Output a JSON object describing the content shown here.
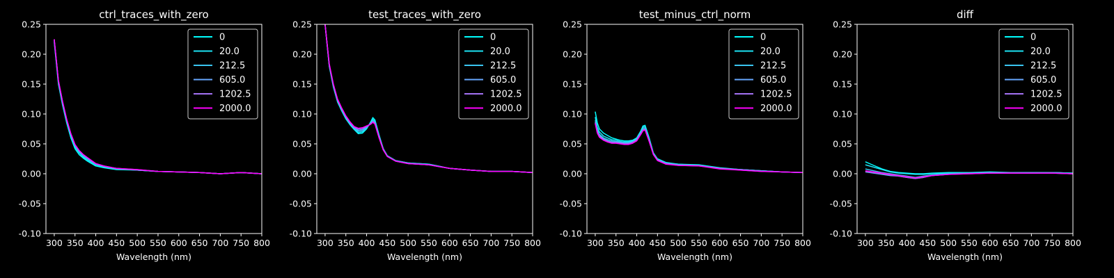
{
  "figure": {
    "background": "#000000",
    "foreground": "#ffffff"
  },
  "chart_data": [
    {
      "type": "line",
      "title": "ctrl_traces_with_zero",
      "xlabel": "Wavelength (nm)",
      "ylabel": "",
      "xlim": [
        280,
        800
      ],
      "ylim": [
        -0.1,
        0.25
      ],
      "xticks": [
        300,
        350,
        400,
        450,
        500,
        550,
        600,
        650,
        700,
        750,
        800
      ],
      "yticks": [
        -0.1,
        -0.05,
        0.0,
        0.05,
        0.1,
        0.15,
        0.2,
        0.25
      ],
      "legend_position": "top-right",
      "x": [
        300,
        310,
        320,
        330,
        340,
        350,
        360,
        370,
        380,
        390,
        400,
        420,
        450,
        500,
        550,
        600,
        650,
        700,
        750,
        800
      ],
      "series": [
        {
          "name": "0",
          "color": "#00ffff",
          "values": [
            0.22,
            0.15,
            0.115,
            0.085,
            0.06,
            0.042,
            0.032,
            0.026,
            0.021,
            0.017,
            0.013,
            0.01,
            0.007,
            0.006,
            0.004,
            0.003,
            0.002,
            0.0,
            0.002,
            0.0
          ]
        },
        {
          "name": "20.0",
          "color": "#1ce3f5",
          "values": [
            0.222,
            0.152,
            0.117,
            0.087,
            0.063,
            0.045,
            0.035,
            0.028,
            0.023,
            0.019,
            0.015,
            0.011,
            0.008,
            0.006,
            0.004,
            0.003,
            0.002,
            0.0,
            0.002,
            0.0
          ]
        },
        {
          "name": "212.5",
          "color": "#3ac5f0",
          "values": [
            0.223,
            0.154,
            0.119,
            0.089,
            0.065,
            0.047,
            0.037,
            0.03,
            0.025,
            0.02,
            0.016,
            0.012,
            0.008,
            0.006,
            0.004,
            0.003,
            0.002,
            0.0,
            0.002,
            0.0
          ]
        },
        {
          "name": "605.0",
          "color": "#66a8ff",
          "values": [
            0.224,
            0.155,
            0.12,
            0.09,
            0.066,
            0.048,
            0.038,
            0.031,
            0.026,
            0.021,
            0.017,
            0.012,
            0.009,
            0.006,
            0.004,
            0.003,
            0.002,
            0.0,
            0.002,
            0.0
          ]
        },
        {
          "name": "1202.5",
          "color": "#a472f5",
          "values": [
            0.225,
            0.156,
            0.121,
            0.091,
            0.067,
            0.049,
            0.039,
            0.032,
            0.027,
            0.022,
            0.017,
            0.013,
            0.009,
            0.007,
            0.004,
            0.003,
            0.002,
            0.0,
            0.002,
            0.0
          ]
        },
        {
          "name": "2000.0",
          "color": "#ff00ff",
          "values": [
            0.225,
            0.156,
            0.121,
            0.091,
            0.067,
            0.049,
            0.039,
            0.032,
            0.027,
            0.022,
            0.017,
            0.013,
            0.009,
            0.007,
            0.004,
            0.003,
            0.002,
            0.0,
            0.002,
            0.0
          ]
        }
      ]
    },
    {
      "type": "line",
      "title": "test_traces_with_zero",
      "xlabel": "Wavelength (nm)",
      "ylabel": "",
      "xlim": [
        280,
        800
      ],
      "ylim": [
        -0.1,
        0.25
      ],
      "xticks": [
        300,
        350,
        400,
        450,
        500,
        550,
        600,
        650,
        700,
        750,
        800
      ],
      "yticks": [
        -0.1,
        -0.05,
        0.0,
        0.05,
        0.1,
        0.15,
        0.2,
        0.25
      ],
      "legend_position": "top-right",
      "x": [
        300,
        310,
        320,
        330,
        340,
        350,
        360,
        370,
        380,
        390,
        400,
        410,
        415,
        420,
        430,
        440,
        450,
        470,
        500,
        550,
        600,
        650,
        700,
        750,
        800
      ],
      "series": [
        {
          "name": "0",
          "color": "#00ffff",
          "values": [
            0.25,
            0.18,
            0.145,
            0.12,
            0.105,
            0.092,
            0.082,
            0.074,
            0.067,
            0.068,
            0.075,
            0.087,
            0.094,
            0.09,
            0.065,
            0.042,
            0.03,
            0.022,
            0.018,
            0.016,
            0.009,
            0.006,
            0.004,
            0.004,
            0.002
          ]
        },
        {
          "name": "20.0",
          "color": "#1ce3f5",
          "values": [
            0.25,
            0.18,
            0.146,
            0.121,
            0.106,
            0.093,
            0.083,
            0.075,
            0.069,
            0.07,
            0.076,
            0.086,
            0.091,
            0.088,
            0.064,
            0.042,
            0.03,
            0.022,
            0.018,
            0.016,
            0.009,
            0.006,
            0.004,
            0.004,
            0.002
          ]
        },
        {
          "name": "212.5",
          "color": "#3ac5f0",
          "values": [
            0.25,
            0.181,
            0.147,
            0.122,
            0.107,
            0.094,
            0.084,
            0.076,
            0.071,
            0.072,
            0.077,
            0.085,
            0.089,
            0.086,
            0.063,
            0.041,
            0.03,
            0.022,
            0.018,
            0.015,
            0.009,
            0.006,
            0.004,
            0.004,
            0.002
          ]
        },
        {
          "name": "605.0",
          "color": "#66a8ff",
          "values": [
            0.25,
            0.182,
            0.148,
            0.123,
            0.108,
            0.095,
            0.085,
            0.077,
            0.073,
            0.074,
            0.078,
            0.084,
            0.088,
            0.085,
            0.062,
            0.041,
            0.029,
            0.021,
            0.017,
            0.015,
            0.009,
            0.006,
            0.004,
            0.004,
            0.002
          ]
        },
        {
          "name": "1202.5",
          "color": "#a472f5",
          "values": [
            0.25,
            0.183,
            0.149,
            0.124,
            0.109,
            0.096,
            0.086,
            0.078,
            0.075,
            0.076,
            0.079,
            0.083,
            0.087,
            0.084,
            0.061,
            0.04,
            0.029,
            0.021,
            0.017,
            0.015,
            0.009,
            0.006,
            0.004,
            0.004,
            0.002
          ]
        },
        {
          "name": "2000.0",
          "color": "#ff00ff",
          "values": [
            0.25,
            0.184,
            0.15,
            0.125,
            0.11,
            0.097,
            0.087,
            0.079,
            0.076,
            0.077,
            0.08,
            0.083,
            0.086,
            0.083,
            0.06,
            0.04,
            0.029,
            0.021,
            0.017,
            0.015,
            0.009,
            0.006,
            0.004,
            0.004,
            0.002
          ]
        }
      ]
    },
    {
      "type": "line",
      "title": "test_minus_ctrl_norm",
      "xlabel": "Wavelength (nm)",
      "ylabel": "",
      "xlim": [
        280,
        800
      ],
      "ylim": [
        -0.1,
        0.25
      ],
      "xticks": [
        300,
        350,
        400,
        450,
        500,
        550,
        600,
        650,
        700,
        750,
        800
      ],
      "yticks": [
        -0.1,
        -0.05,
        0.0,
        0.05,
        0.1,
        0.15,
        0.2,
        0.25
      ],
      "legend_position": "top-right",
      "x": [
        300,
        305,
        310,
        320,
        330,
        340,
        350,
        360,
        370,
        380,
        390,
        400,
        410,
        415,
        420,
        430,
        440,
        450,
        470,
        500,
        550,
        600,
        650,
        700,
        750,
        800
      ],
      "series": [
        {
          "name": "0",
          "color": "#00ffff",
          "values": [
            0.104,
            0.085,
            0.075,
            0.068,
            0.064,
            0.06,
            0.058,
            0.056,
            0.055,
            0.055,
            0.056,
            0.06,
            0.072,
            0.08,
            0.081,
            0.06,
            0.035,
            0.025,
            0.019,
            0.016,
            0.015,
            0.01,
            0.007,
            0.005,
            0.003,
            0.002
          ]
        },
        {
          "name": "20.0",
          "color": "#1ce3f5",
          "values": [
            0.095,
            0.078,
            0.07,
            0.063,
            0.06,
            0.057,
            0.056,
            0.054,
            0.053,
            0.053,
            0.055,
            0.059,
            0.071,
            0.078,
            0.079,
            0.058,
            0.034,
            0.024,
            0.018,
            0.016,
            0.014,
            0.009,
            0.007,
            0.005,
            0.003,
            0.002
          ]
        },
        {
          "name": "212.5",
          "color": "#3ac5f0",
          "values": [
            0.09,
            0.074,
            0.066,
            0.06,
            0.057,
            0.055,
            0.054,
            0.053,
            0.052,
            0.052,
            0.054,
            0.058,
            0.069,
            0.076,
            0.077,
            0.057,
            0.034,
            0.024,
            0.018,
            0.015,
            0.014,
            0.009,
            0.007,
            0.005,
            0.003,
            0.002
          ]
        },
        {
          "name": "605.0",
          "color": "#66a8ff",
          "values": [
            0.087,
            0.071,
            0.064,
            0.058,
            0.055,
            0.053,
            0.053,
            0.052,
            0.051,
            0.051,
            0.053,
            0.057,
            0.068,
            0.074,
            0.075,
            0.056,
            0.033,
            0.023,
            0.017,
            0.015,
            0.014,
            0.009,
            0.007,
            0.005,
            0.003,
            0.002
          ]
        },
        {
          "name": "1202.5",
          "color": "#a472f5",
          "values": [
            0.085,
            0.069,
            0.062,
            0.057,
            0.054,
            0.052,
            0.052,
            0.051,
            0.05,
            0.05,
            0.052,
            0.056,
            0.067,
            0.073,
            0.074,
            0.055,
            0.033,
            0.023,
            0.017,
            0.014,
            0.013,
            0.009,
            0.006,
            0.004,
            0.003,
            0.002
          ]
        },
        {
          "name": "2000.0",
          "color": "#ff00ff",
          "values": [
            0.084,
            0.068,
            0.061,
            0.056,
            0.053,
            0.051,
            0.051,
            0.05,
            0.049,
            0.049,
            0.051,
            0.055,
            0.066,
            0.072,
            0.073,
            0.054,
            0.032,
            0.022,
            0.016,
            0.014,
            0.013,
            0.008,
            0.006,
            0.004,
            0.003,
            0.002
          ]
        }
      ]
    },
    {
      "type": "line",
      "title": "diff",
      "xlabel": "Wavelength (nm)",
      "ylabel": "",
      "xlim": [
        280,
        800
      ],
      "ylim": [
        -0.1,
        0.25
      ],
      "xticks": [
        300,
        350,
        400,
        450,
        500,
        550,
        600,
        650,
        700,
        750,
        800
      ],
      "yticks": [
        -0.1,
        -0.05,
        0.0,
        0.05,
        0.1,
        0.15,
        0.2,
        0.25
      ],
      "legend_position": "top-right",
      "x": [
        300,
        320,
        340,
        360,
        380,
        400,
        420,
        440,
        460,
        500,
        550,
        600,
        650,
        700,
        750,
        800
      ],
      "series": [
        {
          "name": "0",
          "color": "#00ffff",
          "values": [
            0.02,
            0.014,
            0.008,
            0.004,
            0.002,
            0.001,
            0.0,
            0.0,
            0.001,
            0.002,
            0.002,
            0.003,
            0.002,
            0.002,
            0.002,
            0.001
          ]
        },
        {
          "name": "20.0",
          "color": "#1ce3f5",
          "values": [
            0.015,
            0.011,
            0.007,
            0.003,
            0.001,
            0.0,
            -0.001,
            -0.001,
            0.0,
            0.001,
            0.002,
            0.002,
            0.002,
            0.002,
            0.002,
            0.001
          ]
        },
        {
          "name": "212.5",
          "color": "#3ac5f0",
          "values": [
            0.008,
            0.005,
            0.002,
            0.0,
            -0.002,
            -0.004,
            -0.006,
            -0.004,
            -0.002,
            0.0,
            0.001,
            0.002,
            0.002,
            0.001,
            0.002,
            0.001
          ]
        },
        {
          "name": "605.0",
          "color": "#66a8ff",
          "values": [
            0.003,
            0.001,
            -0.001,
            -0.003,
            -0.004,
            -0.006,
            -0.008,
            -0.006,
            -0.003,
            -0.001,
            0.001,
            0.001,
            0.001,
            0.001,
            0.001,
            0.0
          ]
        },
        {
          "name": "1202.5",
          "color": "#a472f5",
          "values": [
            0.004,
            0.002,
            0.0,
            -0.002,
            -0.004,
            -0.006,
            -0.008,
            -0.006,
            -0.003,
            -0.001,
            0.0,
            0.001,
            0.001,
            0.001,
            0.001,
            0.0
          ]
        },
        {
          "name": "2000.0",
          "color": "#ff00ff",
          "values": [
            0.005,
            0.003,
            0.001,
            -0.001,
            -0.003,
            -0.005,
            -0.007,
            -0.005,
            -0.003,
            -0.001,
            0.0,
            0.001,
            0.001,
            0.001,
            0.001,
            0.0
          ]
        }
      ]
    }
  ]
}
